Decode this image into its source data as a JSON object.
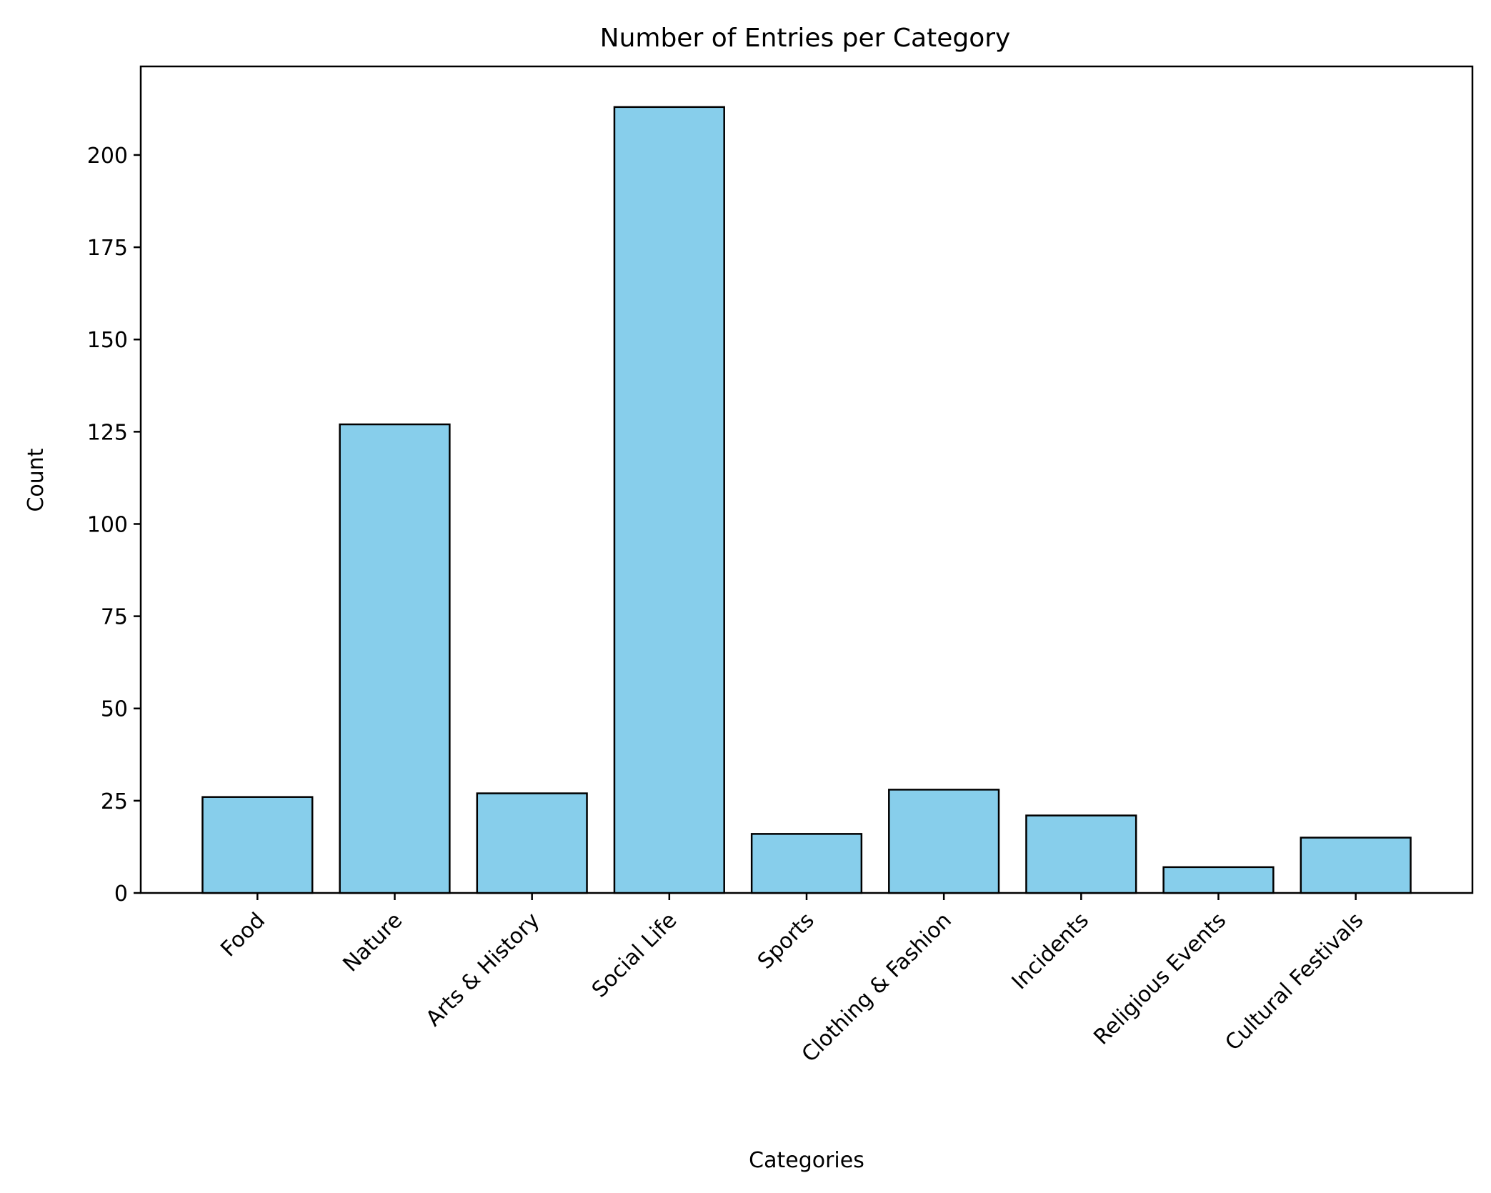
{
  "chart_data": {
    "type": "bar",
    "title": "Number of Entries per Category",
    "xlabel": "Categories",
    "ylabel": "Count",
    "categories": [
      "Food",
      "Nature",
      "Arts & History",
      "Social Life",
      "Sports",
      "Clothing & Fashion",
      "Incidents",
      "Religious Events",
      "Cultural Festivals"
    ],
    "values": [
      26,
      127,
      27,
      213,
      16,
      28,
      21,
      7,
      15
    ],
    "ylim": [
      0,
      224
    ],
    "yticks": [
      "0",
      "25",
      "50",
      "75",
      "100",
      "125",
      "150",
      "175",
      "200"
    ],
    "grid": false,
    "legend": "none",
    "colors": {
      "bar_fill": "#87ceeb",
      "bar_edge": "#000000",
      "axis": "#000000",
      "background": "#ffffff"
    }
  }
}
